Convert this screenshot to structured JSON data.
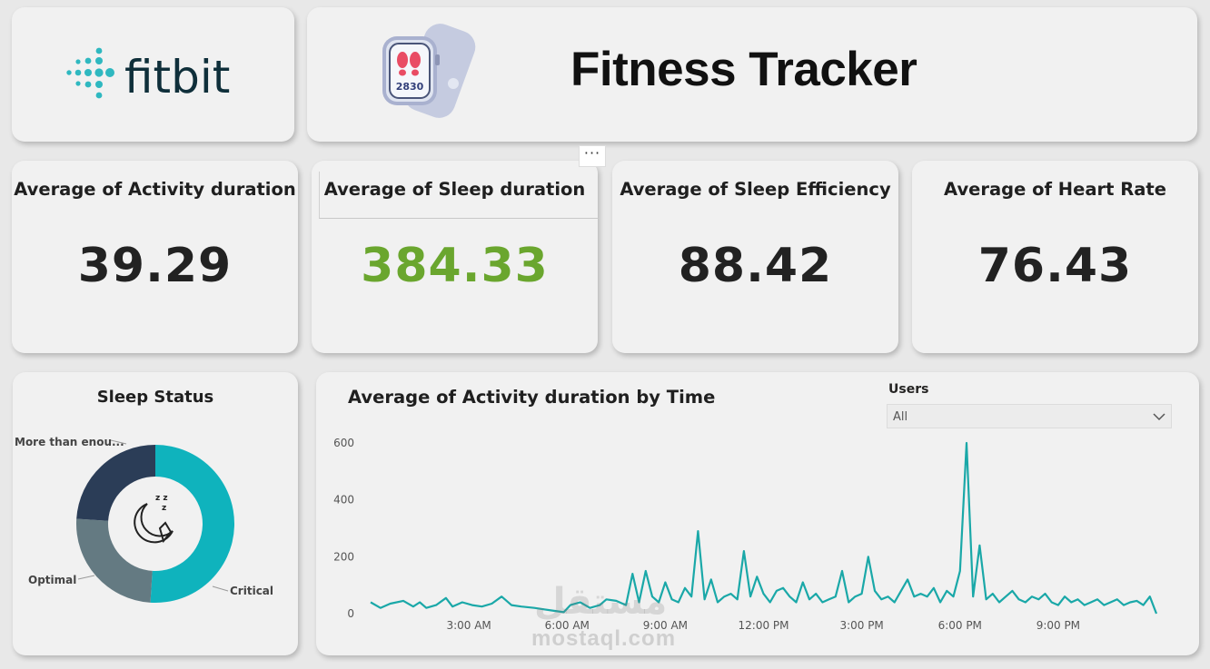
{
  "brand": {
    "logo_text": "fitbit",
    "logo_color": "#2fb8c0"
  },
  "header": {
    "title": "Fitness Tracker",
    "watch_display": "2830"
  },
  "kpis": [
    {
      "label": "Average of Activity duration",
      "value": "39.29"
    },
    {
      "label": "Average of Sleep duration",
      "value": "384.33",
      "color": "#6aa62e"
    },
    {
      "label": "Average of Sleep Efficiency",
      "value": "88.42"
    },
    {
      "label": "Average of Heart Rate",
      "value": "76.43"
    }
  ],
  "sleep_status": {
    "title": "Sleep Status",
    "labels": {
      "more": "More than enou...",
      "optimal": "Optimal",
      "critical": "Critical"
    }
  },
  "activity_chart": {
    "title": "Average of Activity duration by Time",
    "slicer": {
      "label": "Users",
      "value": "All"
    }
  },
  "watermark": {
    "text": "mostaql.com",
    "arabic": "مستقل"
  },
  "colors": {
    "teal": "#1aa8a8",
    "navy": "#2b3d57",
    "slate": "#647a82",
    "cyan": "#0fb3bd",
    "green": "#6aa62e"
  },
  "chart_data": [
    {
      "type": "pie",
      "title": "Sleep Status",
      "categories": [
        "Critical",
        "Optimal",
        "More than enou..."
      ],
      "values": [
        51,
        25,
        24
      ]
    },
    {
      "type": "line",
      "title": "Average of Activity duration by Time",
      "xlabel": "",
      "ylabel": "",
      "ylim": [
        0,
        600
      ],
      "yticks": [
        0,
        200,
        400,
        600
      ],
      "xticks": [
        "3:00 AM",
        "6:00 AM",
        "9:00 AM",
        "12:00 PM",
        "3:00 PM",
        "6:00 PM",
        "9:00 PM"
      ],
      "xlim_hours": [
        0,
        24
      ],
      "x_hours": [
        0.0,
        0.3,
        0.6,
        1.0,
        1.3,
        1.5,
        1.7,
        2.0,
        2.3,
        2.5,
        2.8,
        3.1,
        3.4,
        3.7,
        4.0,
        4.3,
        4.6,
        5.0,
        5.3,
        5.6,
        5.9,
        6.1,
        6.4,
        6.7,
        7.0,
        7.2,
        7.5,
        7.8,
        8.0,
        8.2,
        8.4,
        8.6,
        8.8,
        9.0,
        9.2,
        9.4,
        9.6,
        9.8,
        10.0,
        10.2,
        10.4,
        10.6,
        10.8,
        11.0,
        11.2,
        11.4,
        11.6,
        11.8,
        12.0,
        12.2,
        12.4,
        12.6,
        12.8,
        13.0,
        13.2,
        13.4,
        13.6,
        13.8,
        14.0,
        14.2,
        14.4,
        14.6,
        14.8,
        15.0,
        15.2,
        15.4,
        15.6,
        15.8,
        16.0,
        16.2,
        16.4,
        16.6,
        16.8,
        17.0,
        17.2,
        17.4,
        17.6,
        17.8,
        18.0,
        18.2,
        18.4,
        18.6,
        18.8,
        19.0,
        19.2,
        19.4,
        19.6,
        19.8,
        20.0,
        20.2,
        20.4,
        20.6,
        20.8,
        21.0,
        21.2,
        21.4,
        21.6,
        21.8,
        22.0,
        22.2,
        22.4,
        22.6,
        22.8,
        23.0,
        23.2,
        23.4,
        23.6,
        23.8,
        24.0
      ],
      "series": [
        {
          "values": [
            40,
            20,
            35,
            45,
            25,
            40,
            20,
            30,
            55,
            25,
            40,
            30,
            25,
            35,
            60,
            30,
            25,
            20,
            15,
            10,
            5,
            30,
            40,
            20,
            30,
            50,
            45,
            30,
            140,
            40,
            150,
            60,
            40,
            110,
            50,
            40,
            90,
            60,
            290,
            50,
            120,
            40,
            60,
            70,
            50,
            220,
            60,
            130,
            70,
            40,
            80,
            90,
            60,
            40,
            110,
            50,
            70,
            40,
            50,
            60,
            150,
            40,
            60,
            70,
            200,
            80,
            50,
            60,
            40,
            80,
            120,
            60,
            70,
            60,
            90,
            40,
            80,
            60,
            150,
            600,
            60,
            240,
            50,
            70,
            40,
            60,
            80,
            50,
            40,
            60,
            50,
            70,
            40,
            30,
            60,
            40,
            50,
            30,
            40,
            50,
            30,
            40,
            50,
            30,
            40,
            45,
            30,
            60
          ]
        }
      ]
    }
  ]
}
